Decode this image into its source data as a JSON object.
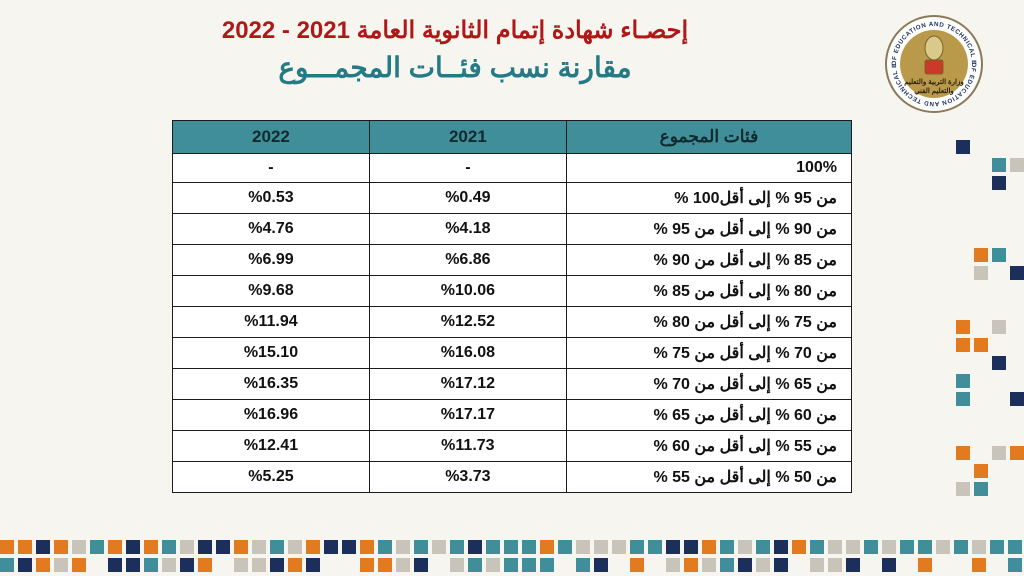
{
  "header": {
    "title_red": "إحصـاء شهادة إتمام الثانوية العامة 2021 - 2022",
    "title_teal": "مقارنة نسب فئــات المجمـــوع",
    "logo_outer_text": "MINISTRY OF EDUCATION AND TECHNICAL EDUCATION",
    "logo_inner_top": "وزارة التربية والتعليم",
    "logo_inner_bottom": "والتعليم الفني"
  },
  "colors": {
    "background": "#f7f5f0",
    "title_red": "#b01818",
    "title_teal": "#247a85",
    "table_header_bg": "#3f8e99",
    "table_border": "#1c1c1c",
    "deco_teal": "#3f8e99",
    "deco_orange": "#e27a1f",
    "deco_navy": "#1b2f5a",
    "deco_grey": "#c9c4ba"
  },
  "table": {
    "type": "table",
    "columns": [
      "فئات المجموع",
      "2021",
      "2022"
    ],
    "rows": [
      [
        "100%",
        "-",
        "-"
      ],
      [
        "من 95 % إلى أقل100 %",
        "%0.49",
        "%0.53"
      ],
      [
        "من 90 % إلى أقل من 95 %",
        "%4.18",
        "%4.76"
      ],
      [
        "من 85 % إلى أقل من 90 %",
        "%6.86",
        "%6.99"
      ],
      [
        "من 80 % إلى أقل من 85 %",
        "%10.06",
        "%9.68"
      ],
      [
        "من 75 % إلى أقل من 80 %",
        "%12.52",
        "%11.94"
      ],
      [
        "من 70 % إلى أقل من 75 %",
        "%16.08",
        "%15.10"
      ],
      [
        "من 65 % إلى أقل من 70 %",
        "%17.12",
        "%16.35"
      ],
      [
        "من 60 % إلى أقل من 65 %",
        "%17.17",
        "%16.96"
      ],
      [
        "من 55 % إلى أقل من 60 %",
        "%11.73",
        "%12.41"
      ],
      [
        "من 50 % إلى أقل من 55 %",
        "%3.73",
        "%5.25"
      ]
    ],
    "col_widths_pct": [
      42,
      29,
      29
    ],
    "font_size": 16,
    "header_font_size": 17
  }
}
